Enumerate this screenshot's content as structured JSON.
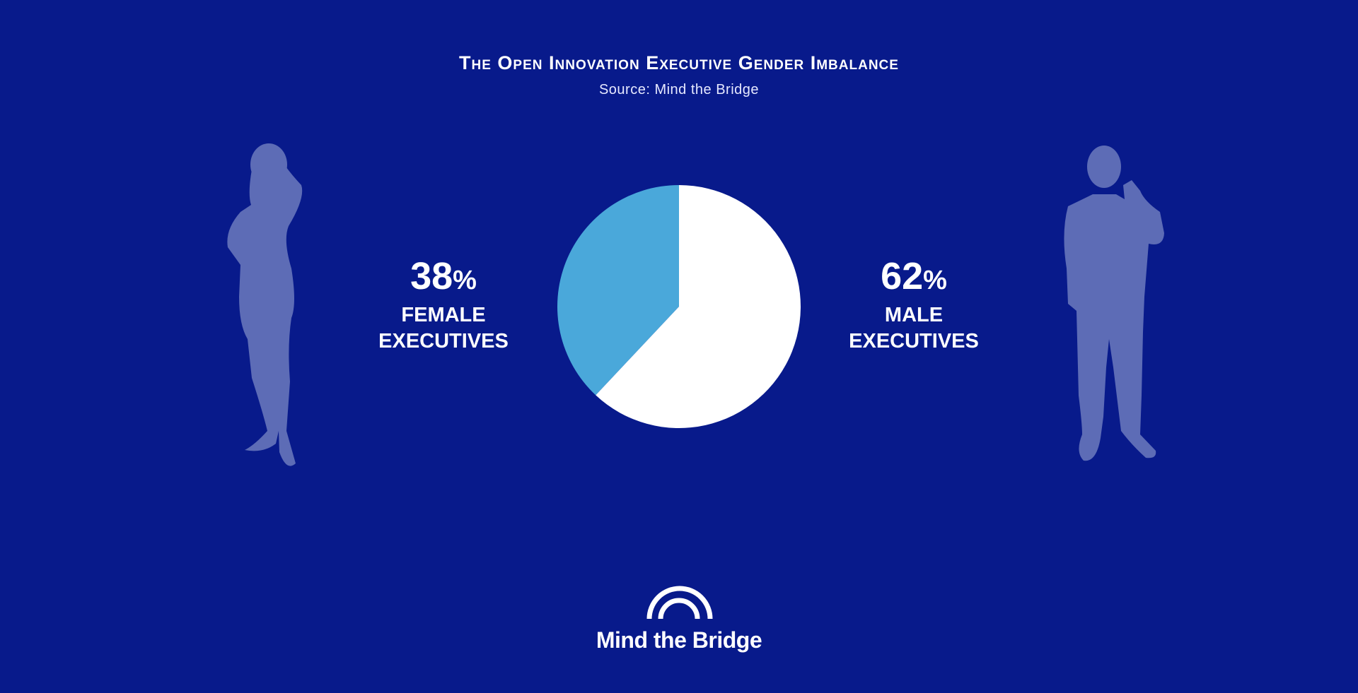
{
  "chart_data": {
    "type": "pie",
    "title": "The Open Innovation Executive Gender Imbalance",
    "subtitle": "Source: Mind the Bridge",
    "categories": [
      "FEMALE EXECUTIVES",
      "MALE EXECUTIVES"
    ],
    "values": [
      38,
      62
    ],
    "value_labels": [
      "38%",
      "62%"
    ],
    "colors": [
      "#4aa8da",
      "#ffffff"
    ]
  },
  "logo": "Mind the Bridge"
}
